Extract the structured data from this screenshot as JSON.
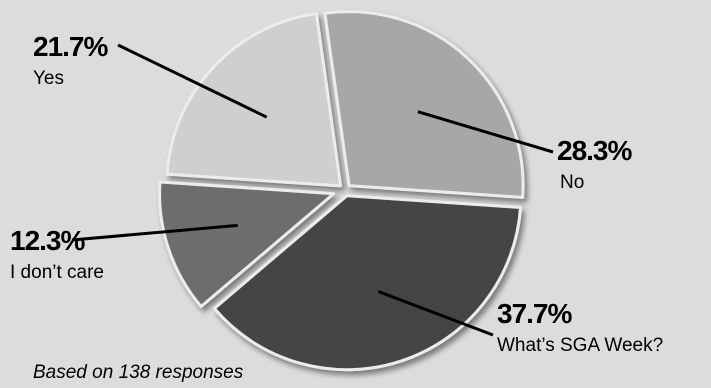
{
  "chart_data": {
    "type": "pie",
    "slices": [
      {
        "pct_label": "28.3%",
        "label": "No",
        "value": 28.3,
        "color": "#a7a7a7"
      },
      {
        "pct_label": "37.7%",
        "label": "What’s SGA Week?",
        "value": 37.7,
        "color": "#454545"
      },
      {
        "pct_label": "12.3%",
        "label": "I don’t care",
        "value": 12.3,
        "color": "#6d6d6d"
      },
      {
        "pct_label": "21.7%",
        "label": "Yes",
        "value": 21.7,
        "color": "#cfcfcf"
      }
    ],
    "note": "Based on 138 responses",
    "legend": "none"
  }
}
